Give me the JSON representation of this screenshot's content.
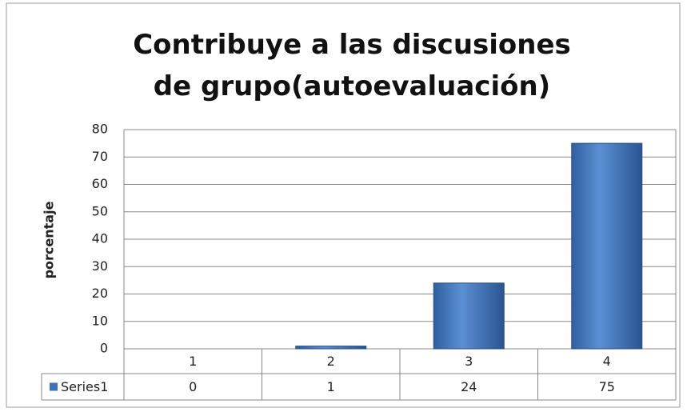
{
  "chart_data": {
    "type": "bar",
    "title": "Contribuye a las discusiones de grupo(autoevaluación)",
    "y_label": "porcentaje",
    "categories": [
      "1",
      "2",
      "3",
      "4"
    ],
    "series": [
      {
        "name": "Series1",
        "color": "#3f71b5",
        "values": [
          0,
          1,
          24,
          75
        ]
      }
    ],
    "ylim": [
      0,
      80
    ],
    "yticks": [
      0,
      10,
      20,
      30,
      40,
      50,
      60,
      70,
      80
    ],
    "grid": true
  }
}
